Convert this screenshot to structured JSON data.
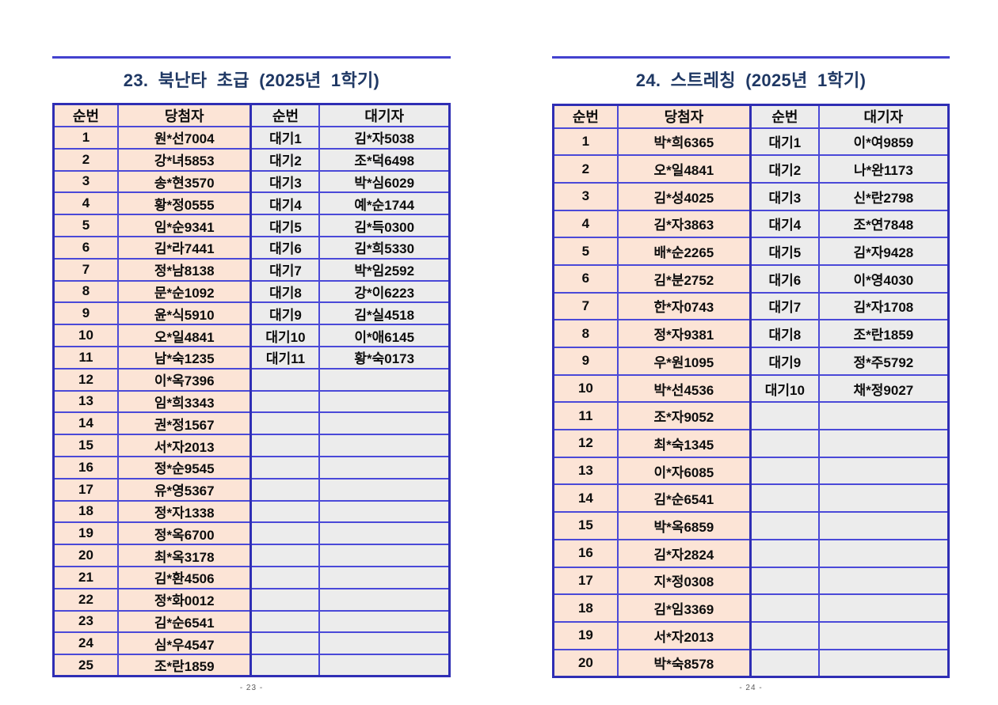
{
  "colors": {
    "accent_border": "#4a49d8",
    "outer_border": "#2f2eb4",
    "winner_bg": "#fce4d6",
    "waitlist_bg": "#ececec",
    "title_color": "#1f3864"
  },
  "tables": [
    {
      "title": "23. 북난타 초급 (2025년 1학기)",
      "page_number": "- 23 -",
      "headers": [
        "순번",
        "당첨자",
        "순번",
        "대기자"
      ],
      "rows": [
        [
          "1",
          "원*선7004",
          "대기1",
          "김*자5038"
        ],
        [
          "2",
          "강*녀5853",
          "대기2",
          "조*덕6498"
        ],
        [
          "3",
          "송*현3570",
          "대기3",
          "박*심6029"
        ],
        [
          "4",
          "황*정0555",
          "대기4",
          "예*순1744"
        ],
        [
          "5",
          "임*순9341",
          "대기5",
          "김*득0300"
        ],
        [
          "6",
          "김*라7441",
          "대기6",
          "김*희5330"
        ],
        [
          "7",
          "정*남8138",
          "대기7",
          "박*임2592"
        ],
        [
          "8",
          "문*순1092",
          "대기8",
          "강*이6223"
        ],
        [
          "9",
          "윤*식5910",
          "대기9",
          "김*실4518"
        ],
        [
          "10",
          "오*일4841",
          "대기10",
          "이*애6145"
        ],
        [
          "11",
          "남*숙1235",
          "대기11",
          "황*숙0173"
        ],
        [
          "12",
          "이*옥7396",
          "",
          ""
        ],
        [
          "13",
          "임*희3343",
          "",
          ""
        ],
        [
          "14",
          "권*정1567",
          "",
          ""
        ],
        [
          "15",
          "서*자2013",
          "",
          ""
        ],
        [
          "16",
          "정*순9545",
          "",
          ""
        ],
        [
          "17",
          "유*영5367",
          "",
          ""
        ],
        [
          "18",
          "정*자1338",
          "",
          ""
        ],
        [
          "19",
          "정*옥6700",
          "",
          ""
        ],
        [
          "20",
          "최*옥3178",
          "",
          ""
        ],
        [
          "21",
          "김*환4506",
          "",
          ""
        ],
        [
          "22",
          "정*화0012",
          "",
          ""
        ],
        [
          "23",
          "김*순6541",
          "",
          ""
        ],
        [
          "24",
          "심*우4547",
          "",
          ""
        ],
        [
          "25",
          "조*란1859",
          "",
          ""
        ]
      ]
    },
    {
      "title": "24. 스트레칭 (2025년 1학기)",
      "page_number": "- 24 -",
      "headers": [
        "순번",
        "당첨자",
        "순번",
        "대기자"
      ],
      "rows": [
        [
          "1",
          "박*희6365",
          "대기1",
          "이*여9859"
        ],
        [
          "2",
          "오*일4841",
          "대기2",
          "나*완1173"
        ],
        [
          "3",
          "김*성4025",
          "대기3",
          "신*란2798"
        ],
        [
          "4",
          "김*자3863",
          "대기4",
          "조*연7848"
        ],
        [
          "5",
          "배*순2265",
          "대기5",
          "김*자9428"
        ],
        [
          "6",
          "김*분2752",
          "대기6",
          "이*영4030"
        ],
        [
          "7",
          "한*자0743",
          "대기7",
          "김*자1708"
        ],
        [
          "8",
          "정*자9381",
          "대기8",
          "조*란1859"
        ],
        [
          "9",
          "우*원1095",
          "대기9",
          "정*주5792"
        ],
        [
          "10",
          "박*선4536",
          "대기10",
          "채*정9027"
        ],
        [
          "11",
          "조*자9052",
          "",
          ""
        ],
        [
          "12",
          "최*숙1345",
          "",
          ""
        ],
        [
          "13",
          "이*자6085",
          "",
          ""
        ],
        [
          "14",
          "김*순6541",
          "",
          ""
        ],
        [
          "15",
          "박*옥6859",
          "",
          ""
        ],
        [
          "16",
          "김*자2824",
          "",
          ""
        ],
        [
          "17",
          "지*정0308",
          "",
          ""
        ],
        [
          "18",
          "김*임3369",
          "",
          ""
        ],
        [
          "19",
          "서*자2013",
          "",
          ""
        ],
        [
          "20",
          "박*숙8578",
          "",
          ""
        ]
      ]
    }
  ]
}
